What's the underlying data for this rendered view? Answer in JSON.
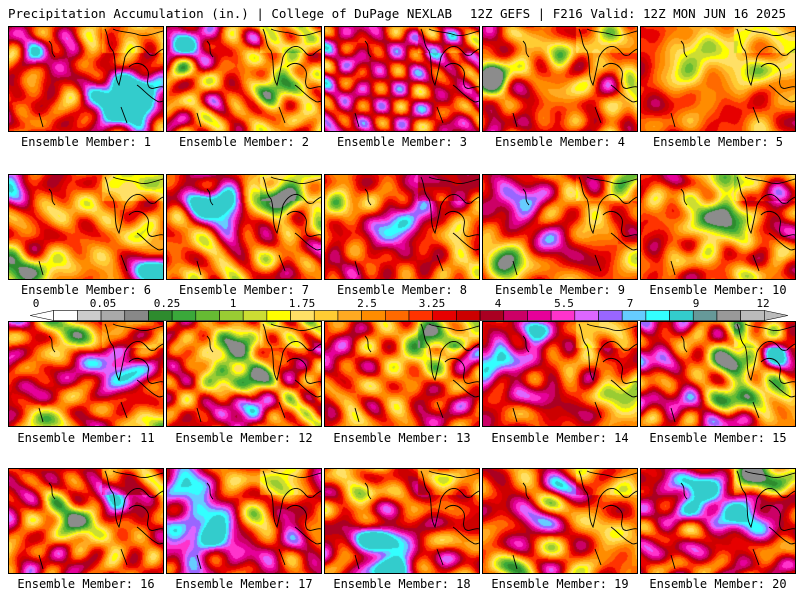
{
  "header": {
    "left": "Precipitation Accumulation (in.) | College of DuPage NEXLAB",
    "right": "12Z GEFS | F216 Valid: 12Z MON JUN 16 2025"
  },
  "panels": [
    {
      "label": "Ensemble Member: 1",
      "seed": 11,
      "wet": 0.05
    },
    {
      "label": "Ensemble Member: 2",
      "seed": 23,
      "wet": -0.05
    },
    {
      "label": "Ensemble Member: 3",
      "seed": 37,
      "wet": 0.35
    },
    {
      "label": "Ensemble Member: 4",
      "seed": 41,
      "wet": 0.15
    },
    {
      "label": "Ensemble Member: 5",
      "seed": 53,
      "wet": 0.05
    },
    {
      "label": "Ensemble Member: 6",
      "seed": 67,
      "wet": -0.1
    },
    {
      "label": "Ensemble Member: 7",
      "seed": 71,
      "wet": 0.0
    },
    {
      "label": "Ensemble Member: 8",
      "seed": 83,
      "wet": 0.1
    },
    {
      "label": "Ensemble Member: 9",
      "seed": 97,
      "wet": 0.05
    },
    {
      "label": "Ensemble Member: 10",
      "seed": 101,
      "wet": 0.0
    },
    {
      "label": "Ensemble Member: 11",
      "seed": 113,
      "wet": 0.25
    },
    {
      "label": "Ensemble Member: 12",
      "seed": 127,
      "wet": 0.1
    },
    {
      "label": "Ensemble Member: 13",
      "seed": 131,
      "wet": -0.1
    },
    {
      "label": "Ensemble Member: 14",
      "seed": 149,
      "wet": 0.15
    },
    {
      "label": "Ensemble Member: 15",
      "seed": 157,
      "wet": 0.3
    },
    {
      "label": "Ensemble Member: 16",
      "seed": 163,
      "wet": 0.2
    },
    {
      "label": "Ensemble Member: 17",
      "seed": 179,
      "wet": 0.35
    },
    {
      "label": "Ensemble Member: 18",
      "seed": 181,
      "wet": 0.2
    },
    {
      "label": "Ensemble Member: 19",
      "seed": 191,
      "wet": 0.0
    },
    {
      "label": "Ensemble Member: 20",
      "seed": 199,
      "wet": 0.25
    }
  ],
  "colorbar": {
    "ticks": [
      "0",
      "0.05",
      "0.25",
      "1",
      "1.75",
      "2.5",
      "3.25",
      "4",
      "5.5",
      "7",
      "9",
      "12"
    ],
    "colors": [
      "#ffffff",
      "#cccccc",
      "#aaaaaa",
      "#888888",
      "#2e8b2e",
      "#3aa83a",
      "#66bb33",
      "#99cc33",
      "#ccdd33",
      "#ffff00",
      "#ffe066",
      "#ffcc33",
      "#ffaa22",
      "#ff8c00",
      "#ff6a00",
      "#ff3300",
      "#e60000",
      "#cc0000",
      "#aa0022",
      "#cc0066",
      "#e60099",
      "#ff33cc",
      "#dd66ff",
      "#9966ff",
      "#66ccff",
      "#33ffff",
      "#33cccc",
      "#669999",
      "#999999",
      "#bbbbbb"
    ]
  }
}
